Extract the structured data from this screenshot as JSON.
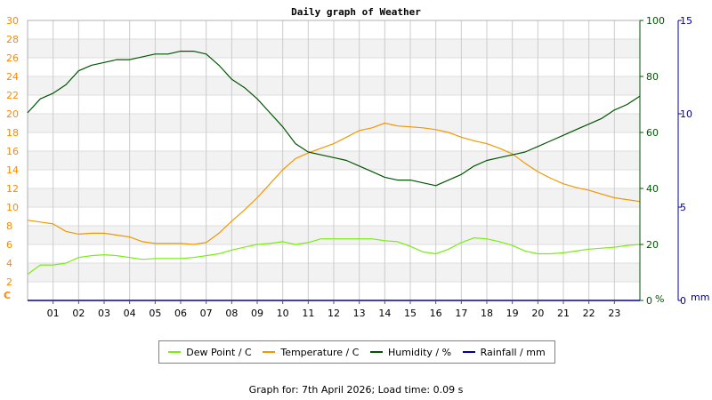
{
  "chart_data": {
    "type": "line",
    "title": "Daily graph of Weather",
    "x_tick_labels": [
      "01",
      "02",
      "03",
      "04",
      "05",
      "06",
      "07",
      "08",
      "09",
      "10",
      "11",
      "12",
      "13",
      "14",
      "15",
      "16",
      "17",
      "18",
      "19",
      "20",
      "21",
      "22",
      "23"
    ],
    "xlim": [
      0,
      24
    ],
    "axes": {
      "left": {
        "unit": "C",
        "ylim": [
          0,
          30
        ],
        "ticks": [
          0,
          2,
          4,
          6,
          8,
          10,
          12,
          14,
          16,
          18,
          20,
          22,
          24,
          26,
          28,
          30
        ],
        "color": "#ff8800"
      },
      "humidity": {
        "unit": "%",
        "ylim": [
          0,
          100
        ],
        "ticks": [
          0,
          20,
          40,
          60,
          80,
          100
        ],
        "color": "#005500"
      },
      "rain": {
        "unit": "mm",
        "ylim": [
          0,
          15
        ],
        "ticks": [
          0,
          5,
          10,
          15
        ],
        "color": "#000099"
      }
    },
    "grid": true,
    "legend_position": "bottom",
    "series": [
      {
        "name": "Dew Point / C",
        "axis": "left",
        "color": "#77ee11",
        "x": [
          0,
          0.5,
          1,
          1.5,
          2,
          2.5,
          3,
          3.5,
          4,
          4.5,
          5,
          5.5,
          6,
          6.5,
          7,
          7.5,
          8,
          8.5,
          9,
          9.5,
          10,
          10.5,
          11,
          11.5,
          12,
          12.5,
          13,
          13.5,
          14,
          14.5,
          15,
          15.5,
          16,
          16.5,
          17,
          17.5,
          18,
          18.5,
          19,
          19.5,
          20,
          20.5,
          21,
          21.5,
          22,
          22.5,
          23,
          23.5,
          24
        ],
        "values": [
          2.8,
          3.8,
          3.8,
          4.0,
          4.6,
          4.8,
          4.9,
          4.8,
          4.6,
          4.4,
          4.5,
          4.5,
          4.5,
          4.6,
          4.8,
          5.0,
          5.4,
          5.7,
          6.0,
          6.1,
          6.3,
          6.0,
          6.2,
          6.6,
          6.6,
          6.6,
          6.6,
          6.6,
          6.4,
          6.3,
          5.8,
          5.2,
          5.0,
          5.5,
          6.2,
          6.7,
          6.6,
          6.3,
          5.9,
          5.3,
          5.0,
          5.0,
          5.1,
          5.3,
          5.5,
          5.6,
          5.7,
          5.9,
          6.0
        ]
      },
      {
        "name": "Temperature / C",
        "axis": "left",
        "color": "#ee9900",
        "x": [
          0,
          0.5,
          1,
          1.5,
          2,
          2.5,
          3,
          3.5,
          4,
          4.5,
          5,
          5.5,
          6,
          6.5,
          7,
          7.5,
          8,
          8.5,
          9,
          9.5,
          10,
          10.5,
          11,
          11.5,
          12,
          12.5,
          13,
          13.5,
          14,
          14.5,
          15,
          15.5,
          16,
          16.5,
          17,
          17.5,
          18,
          18.5,
          19,
          19.5,
          20,
          20.5,
          21,
          21.5,
          22,
          22.5,
          23,
          23.5,
          24
        ],
        "values": [
          8.6,
          8.4,
          8.2,
          7.4,
          7.1,
          7.2,
          7.2,
          7.0,
          6.8,
          6.3,
          6.1,
          6.1,
          6.1,
          6.0,
          6.2,
          7.2,
          8.5,
          9.7,
          11.0,
          12.5,
          14.0,
          15.2,
          15.8,
          16.3,
          16.8,
          17.5,
          18.2,
          18.5,
          19.0,
          18.7,
          18.6,
          18.5,
          18.3,
          18.0,
          17.5,
          17.1,
          16.8,
          16.3,
          15.7,
          14.7,
          13.8,
          13.1,
          12.5,
          12.1,
          11.8,
          11.4,
          11.0,
          10.8,
          10.6
        ]
      },
      {
        "name": "Humidity / %",
        "axis": "humidity",
        "color": "#005500",
        "x": [
          0,
          0.5,
          1,
          1.5,
          2,
          2.5,
          3,
          3.5,
          4,
          4.5,
          5,
          5.5,
          6,
          6.5,
          7,
          7.5,
          8,
          8.5,
          9,
          9.5,
          10,
          10.5,
          11,
          11.5,
          12,
          12.5,
          13,
          13.5,
          14,
          14.5,
          15,
          15.5,
          16,
          16.5,
          17,
          17.5,
          18,
          18.5,
          19,
          19.5,
          20,
          20.5,
          21,
          21.5,
          22,
          22.5,
          23,
          23.5,
          24
        ],
        "values": [
          67,
          72,
          74,
          77,
          82,
          84,
          85,
          86,
          86,
          87,
          88,
          88,
          89,
          89,
          88,
          84,
          79,
          76,
          72,
          67,
          62,
          56,
          53,
          52,
          51,
          50,
          48,
          46,
          44,
          43,
          43,
          42,
          41,
          43,
          45,
          48,
          50,
          51,
          52,
          53,
          55,
          57,
          59,
          61,
          63,
          65,
          68,
          70,
          73
        ]
      },
      {
        "name": "Rainfall / mm",
        "axis": "rain",
        "color": "#000099",
        "x": [
          0,
          24
        ],
        "values": [
          0,
          0
        ]
      }
    ]
  },
  "footer": {
    "text": "Graph for: 7th April 2026; Load time: 0.09 s"
  }
}
